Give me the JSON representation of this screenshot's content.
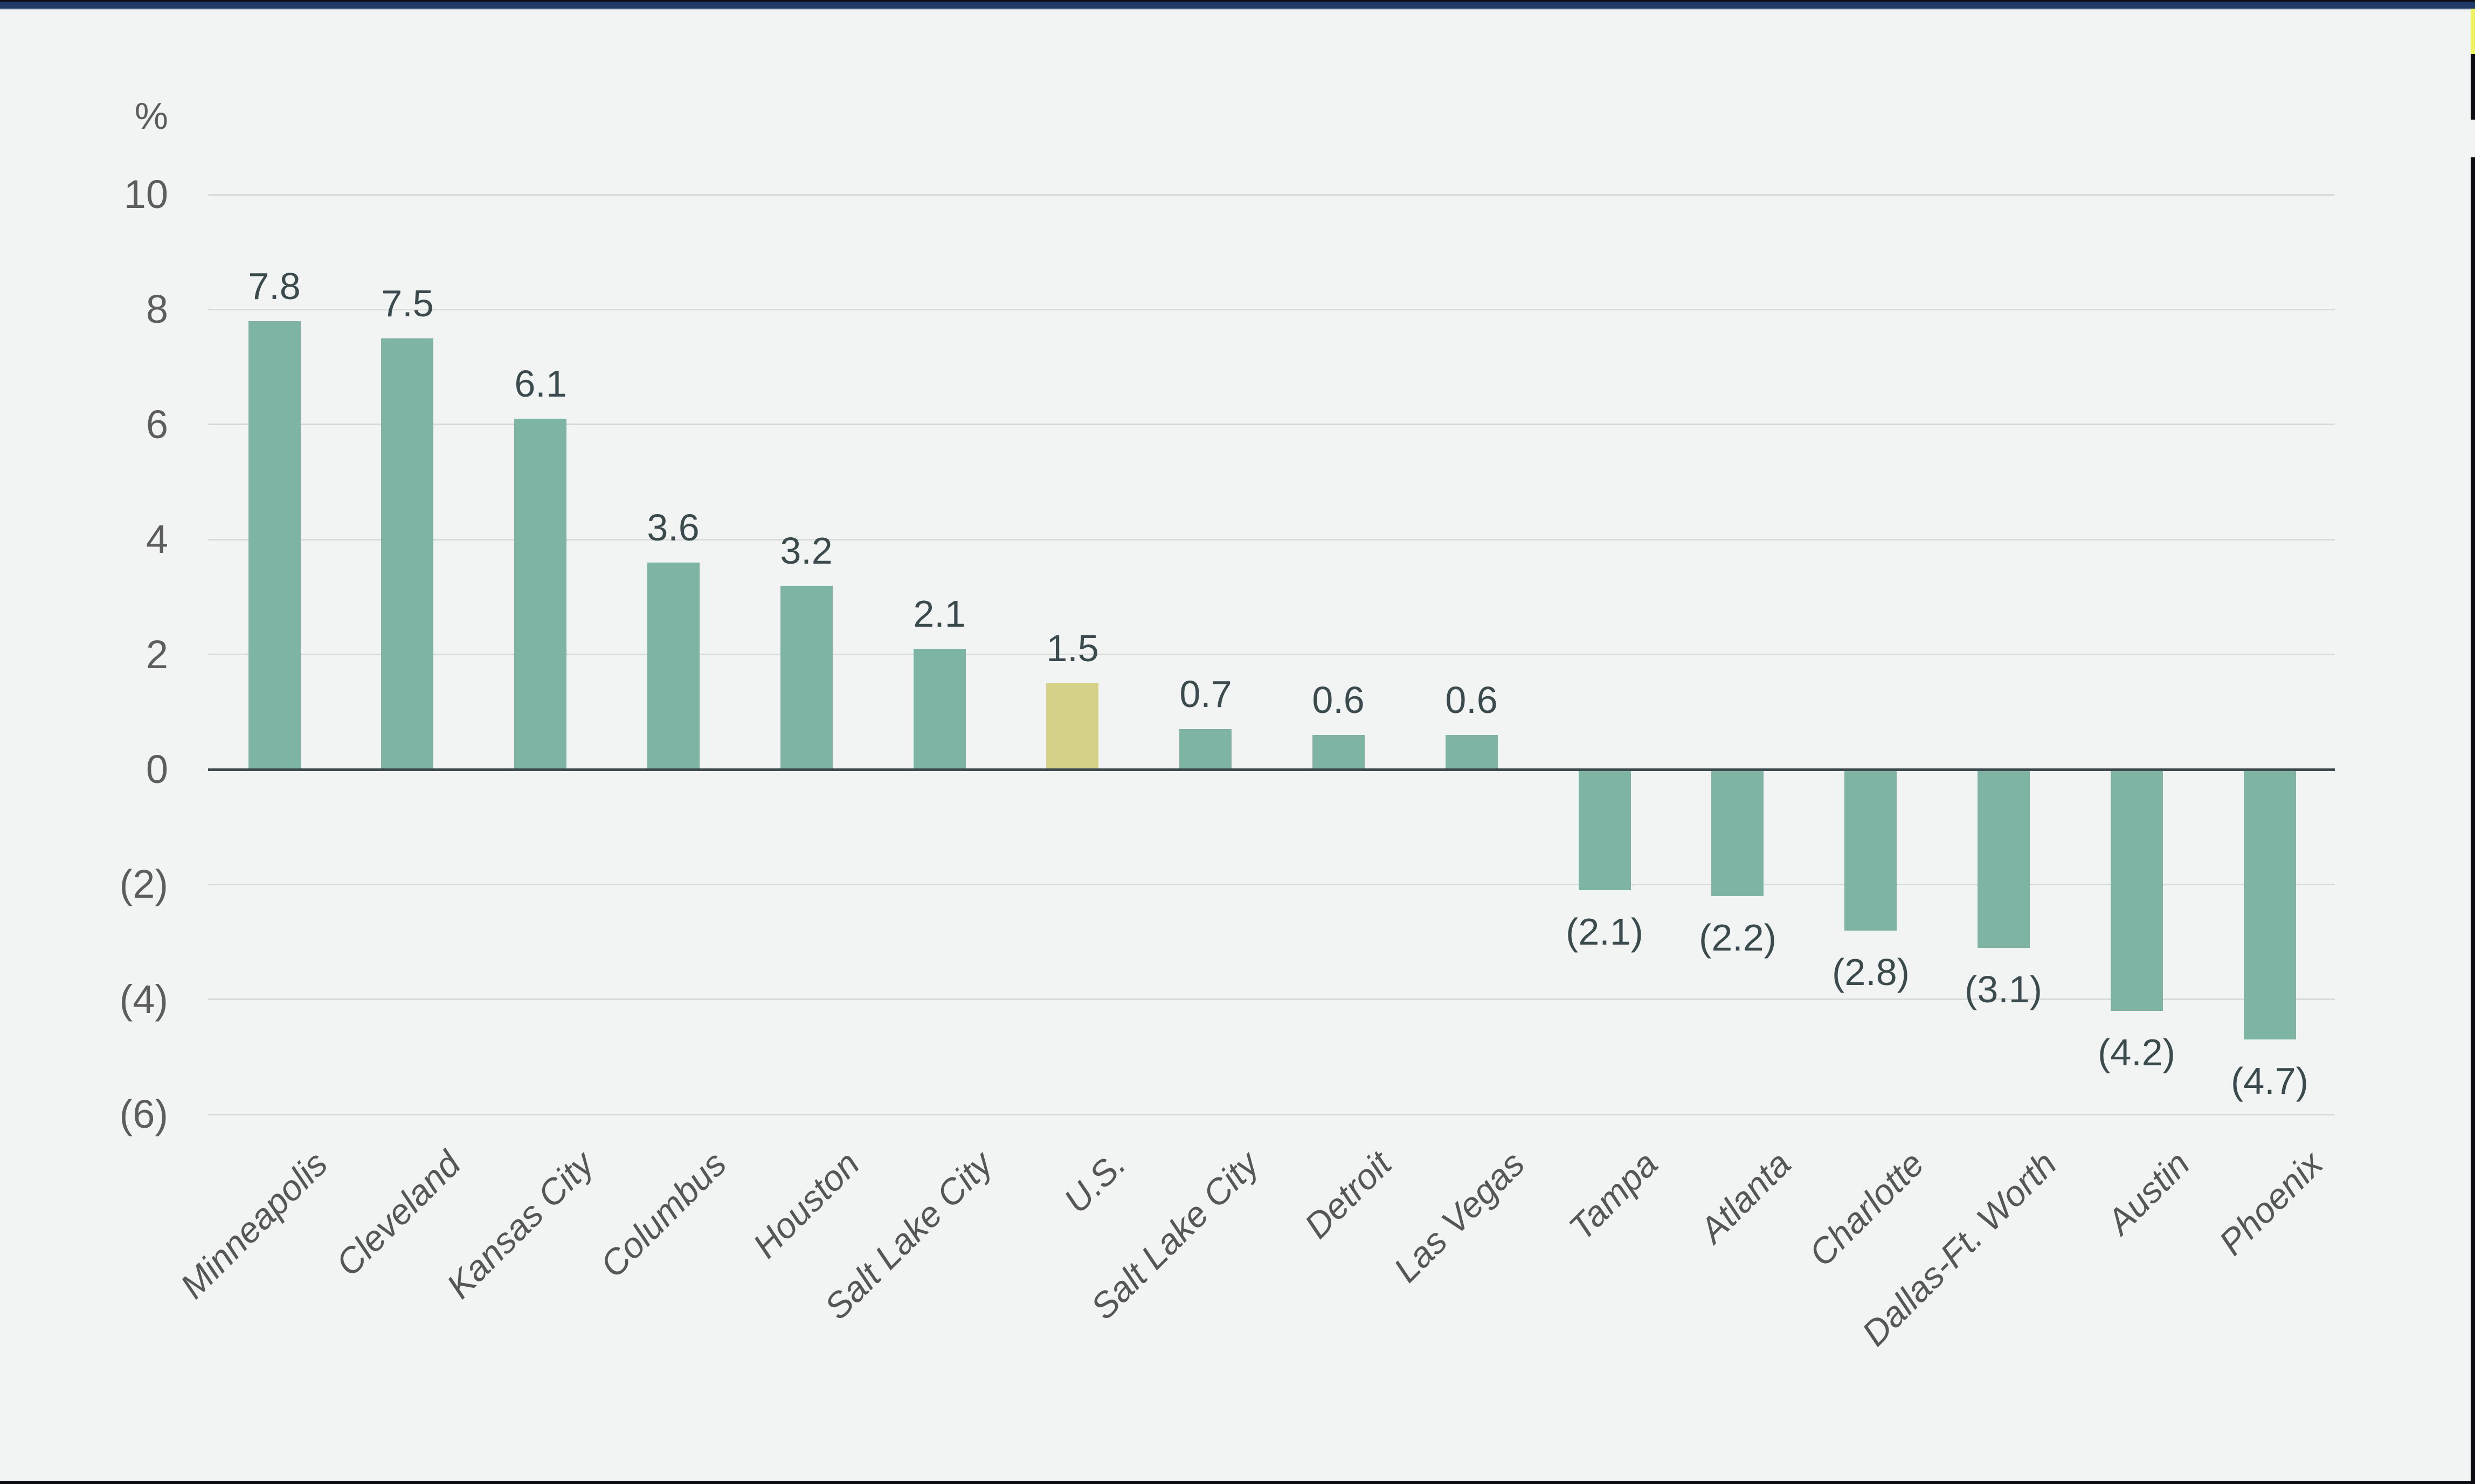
{
  "page": {
    "background": "#f2f4f3",
    "top_border": {
      "outer_color": "#0b0d12",
      "accent_color": "#203864",
      "hairline_color": "#c9d1e0"
    },
    "bottom_border_color": "#0b0d12",
    "right_edge_peek": {
      "yellow_color": "#eef162",
      "black_color": "#0b0d12"
    }
  },
  "chart_data": {
    "type": "bar",
    "title": "",
    "unit_label": "%",
    "xlabel": "",
    "ylabel": "%",
    "categories": [
      "Minneapolis",
      "Cleveland",
      "Kansas City",
      "Columbus",
      "Houston",
      "Salt Lake City",
      "U.S.",
      "Salt Lake City",
      "Detroit",
      "Las Vegas",
      "Tampa",
      "Atlanta",
      "Charlotte",
      "Dallas-Ft. Worth",
      "Austin",
      "Phoenix"
    ],
    "values": [
      7.8,
      7.5,
      6.1,
      3.6,
      3.2,
      2.1,
      1.5,
      0.7,
      0.6,
      0.6,
      -2.1,
      -2.2,
      -2.8,
      -3.1,
      -4.2,
      -4.7
    ],
    "value_labels": [
      "7.8",
      "7.5",
      "6.1",
      "3.6",
      "3.2",
      "2.1",
      "1.5",
      "0.7",
      "0.6",
      "0.6",
      "(2.1)",
      "(2.2)",
      "(2.8)",
      "(3.1)",
      "(4.2)",
      "(4.7)"
    ],
    "highlight_index": 6,
    "y_ticks": [
      10,
      8,
      6,
      4,
      2,
      0,
      -2,
      -4,
      -6
    ],
    "y_tick_labels": [
      "10",
      "8",
      "6",
      "4",
      "2",
      "0",
      "(2)",
      "(4)",
      "(6)"
    ],
    "ylim": [
      -6,
      10
    ],
    "grid": true,
    "legend": "none",
    "colors": {
      "bar": "#7db4a4",
      "highlight_bar": "#d6d189",
      "value_label": "#3a4a4d",
      "tick_label": "#5d5d5d",
      "category_label": "#565656",
      "gridline": "#d5d9d7",
      "zero_line": "#3d4a4d"
    }
  }
}
